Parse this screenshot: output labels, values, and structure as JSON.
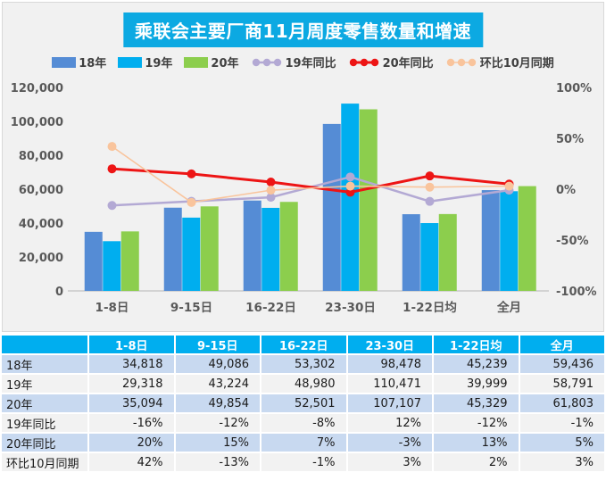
{
  "colors": {
    "title_bg": "#0CA9E2",
    "header_bg": "#00AEEF",
    "row_blue": "#C8D9F0",
    "row_gray": "#F2F2F2",
    "panel_bg": "#F1F1F1",
    "panel_border": "#D8D8D8",
    "axis_text": "#595959",
    "legend_text": "#3F3F3F",
    "baseline": "#C9C9C9"
  },
  "chart_data": {
    "type": "bar",
    "title": "乘联会主要厂商11月周度零售数量和增速",
    "categories": [
      "1-8日",
      "9-15日",
      "16-22日",
      "23-30日",
      "1-22日均",
      "全月"
    ],
    "series": [
      {
        "key": "bars-2018",
        "name": "18年",
        "type": "bar",
        "axis": "left",
        "color": "#558CD5",
        "values": [
          34818,
          49086,
          53302,
          98478,
          45239,
          59436
        ]
      },
      {
        "key": "bars-2019",
        "name": "19年",
        "type": "bar",
        "axis": "left",
        "color": "#00AEEF",
        "values": [
          29318,
          43224,
          48980,
          110471,
          39999,
          58791
        ]
      },
      {
        "key": "bars-2020",
        "name": "20年",
        "type": "bar",
        "axis": "left",
        "color": "#8CCE4D",
        "values": [
          35094,
          49854,
          52501,
          107107,
          45329,
          61803
        ]
      },
      {
        "key": "line-yoy-2019",
        "name": "19年同比",
        "type": "line",
        "axis": "right",
        "color": "#B3A9D4",
        "line_width": 2.5,
        "values": [
          -16,
          -12,
          -8,
          12,
          -12,
          -1
        ]
      },
      {
        "key": "line-yoy-2020",
        "name": "20年同比",
        "type": "line",
        "axis": "right",
        "color": "#ED1515",
        "line_width": 3,
        "values": [
          20,
          15,
          7,
          -3,
          13,
          5
        ]
      },
      {
        "key": "line-mom-october",
        "name": "环比10月同期",
        "type": "line",
        "axis": "right",
        "color": "#F9C49C",
        "line_width": 1.6,
        "values": [
          42,
          -13,
          -1,
          3,
          2,
          3
        ]
      }
    ],
    "left_axis": {
      "min": 0,
      "max": 120000,
      "tick_labels": [
        "0",
        "20,000",
        "40,000",
        "60,000",
        "80,000",
        "100,000",
        "120,000"
      ]
    },
    "right_axis": {
      "min": -100,
      "max": 100,
      "tick_labels": [
        "-100%",
        "-50%",
        "0%",
        "50%",
        "100%"
      ]
    },
    "grid": false,
    "legend_position": "top"
  },
  "table": {
    "columns": [
      "",
      "1-8日",
      "9-15日",
      "16-22日",
      "23-30日",
      "1-22日均",
      "全月"
    ],
    "rows": [
      {
        "key": "row-2018",
        "label": "18年",
        "values": [
          "34,818",
          "49,086",
          "53,302",
          "98,478",
          "45,239",
          "59,436"
        ]
      },
      {
        "key": "row-2019",
        "label": "19年",
        "values": [
          "29,318",
          "43,224",
          "48,980",
          "110,471",
          "39,999",
          "58,791"
        ]
      },
      {
        "key": "row-2020",
        "label": "20年",
        "values": [
          "35,094",
          "49,854",
          "52,501",
          "107,107",
          "45,329",
          "61,803"
        ]
      },
      {
        "key": "row-yoy-2019",
        "label": "19年同比",
        "values": [
          "-16%",
          "-12%",
          "-8%",
          "12%",
          "-12%",
          "-1%"
        ]
      },
      {
        "key": "row-yoy-2020",
        "label": "20年同比",
        "values": [
          "20%",
          "15%",
          "7%",
          "-3%",
          "13%",
          "5%"
        ]
      },
      {
        "key": "row-mom-october",
        "label": "环比10月同期",
        "values": [
          "42%",
          "-13%",
          "-1%",
          "3%",
          "2%",
          "3%"
        ]
      }
    ]
  }
}
